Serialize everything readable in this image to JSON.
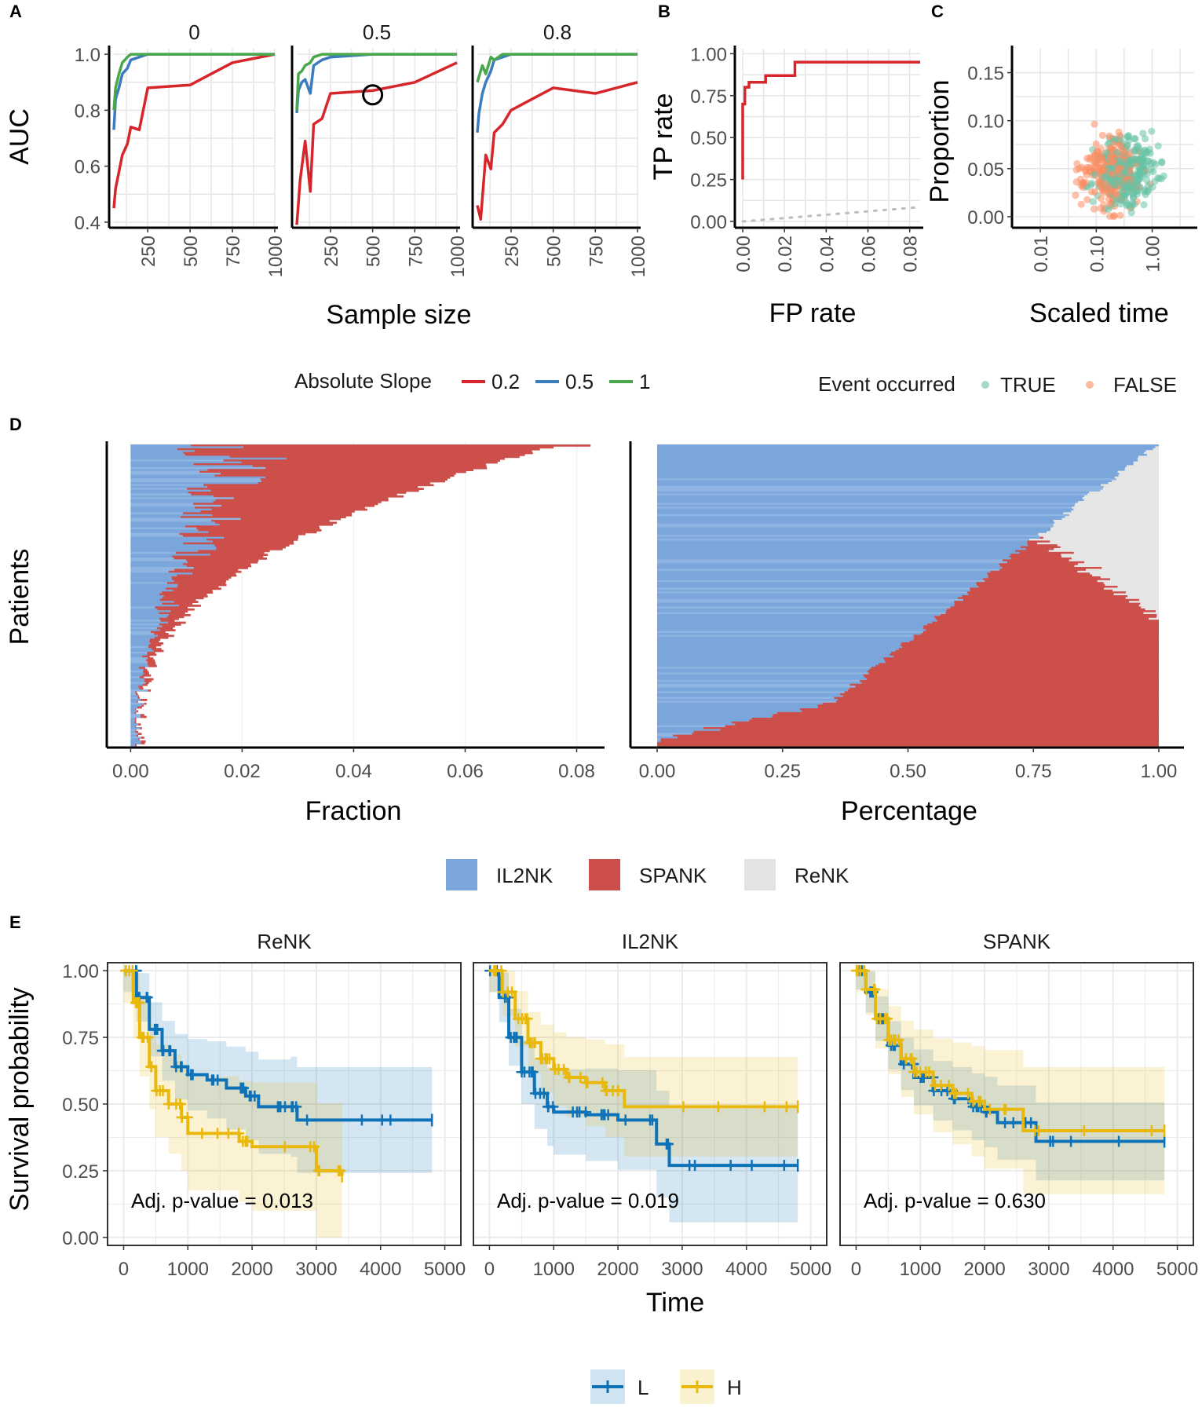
{
  "panel_labels": [
    "A",
    "B",
    "C",
    "D",
    "E"
  ],
  "colors": {
    "slope_02": "#d7262b",
    "slope_05": "#3b7cbf",
    "slope_1": "#4aa84a",
    "il2nk": "#7aa6dc",
    "spank": "#cd4f4a",
    "renk": "#e6e6e6",
    "true_pt": "#66c2a5",
    "false_pt": "#fc8d62",
    "L": "#0e72b8",
    "H": "#e8b90c",
    "grid": "#e6e6e6"
  },
  "chart_data": [
    {
      "id": "A",
      "type": "line",
      "facets": [
        "0",
        "0.5",
        "0.8"
      ],
      "ylabel": "AUC",
      "xlabel": "Sample size",
      "xlim": [
        50,
        1000
      ],
      "ylim": [
        0.38,
        1.02
      ],
      "xticks": [
        "250",
        "500",
        "750",
        "1000"
      ],
      "yticks": [
        "0.4",
        "0.6",
        "0.8",
        "1.0"
      ],
      "legend_title": "Absolute Slope",
      "legend": [
        "0.2",
        "0.5",
        "1"
      ],
      "highlight": {
        "facet": 1,
        "x": 500,
        "y": 0.855
      },
      "series": [
        [
          {
            "name": "0.2",
            "x": [
              50,
              60,
              80,
              100,
              130,
              150,
              200,
              250,
              500,
              750,
              1000
            ],
            "y": [
              0.45,
              0.52,
              0.58,
              0.64,
              0.68,
              0.74,
              0.73,
              0.88,
              0.89,
              0.97,
              1.0
            ]
          },
          {
            "name": "0.5",
            "x": [
              50,
              60,
              80,
              100,
              130,
              150,
              200,
              250,
              500,
              750,
              1000
            ],
            "y": [
              0.73,
              0.84,
              0.88,
              0.93,
              0.95,
              0.98,
              0.99,
              1.0,
              1.0,
              1.0,
              1.0
            ]
          },
          {
            "name": "1",
            "x": [
              50,
              60,
              80,
              100,
              130,
              150,
              200,
              250,
              500,
              750,
              1000
            ],
            "y": [
              0.8,
              0.88,
              0.93,
              0.97,
              0.99,
              1.0,
              1.0,
              1.0,
              1.0,
              1.0,
              1.0
            ]
          }
        ],
        [
          {
            "name": "0.2",
            "x": [
              50,
              70,
              100,
              130,
              150,
              200,
              250,
              500,
              750,
              1000
            ],
            "y": [
              0.39,
              0.55,
              0.69,
              0.51,
              0.75,
              0.77,
              0.86,
              0.87,
              0.9,
              0.97
            ]
          },
          {
            "name": "0.5",
            "x": [
              50,
              60,
              80,
              100,
              130,
              150,
              200,
              250,
              500,
              750,
              1000
            ],
            "y": [
              0.79,
              0.87,
              0.9,
              0.91,
              0.86,
              0.96,
              0.98,
              0.99,
              1.0,
              1.0,
              1.0
            ]
          },
          {
            "name": "1",
            "x": [
              50,
              60,
              80,
              100,
              130,
              150,
              200,
              250,
              500,
              750,
              1000
            ],
            "y": [
              0.8,
              0.93,
              0.94,
              0.96,
              0.97,
              0.99,
              1.0,
              1.0,
              1.0,
              1.0,
              1.0
            ]
          }
        ],
        [
          {
            "name": "0.2",
            "x": [
              50,
              70,
              100,
              130,
              150,
              200,
              250,
              500,
              750,
              1000
            ],
            "y": [
              0.46,
              0.41,
              0.64,
              0.59,
              0.72,
              0.75,
              0.8,
              0.88,
              0.86,
              0.9
            ]
          },
          {
            "name": "0.5",
            "x": [
              50,
              60,
              80,
              100,
              130,
              150,
              200,
              250,
              500,
              750,
              1000
            ],
            "y": [
              0.72,
              0.79,
              0.86,
              0.9,
              0.94,
              0.98,
              0.99,
              1.0,
              1.0,
              1.0,
              1.0
            ]
          },
          {
            "name": "1",
            "x": [
              50,
              60,
              80,
              100,
              130,
              150,
              200,
              250,
              500,
              750,
              1000
            ],
            "y": [
              0.9,
              0.92,
              0.96,
              0.93,
              0.99,
              0.98,
              1.0,
              1.0,
              1.0,
              1.0,
              1.0
            ]
          }
        ]
      ]
    },
    {
      "id": "B",
      "type": "line",
      "ylabel": "TP rate",
      "xlabel": "FP rate",
      "xlim": [
        0,
        0.085
      ],
      "ylim": [
        0,
        1.03
      ],
      "xticks": [
        "0.00",
        "0.02",
        "0.04",
        "0.06",
        "0.08"
      ],
      "yticks": [
        "0.00",
        "0.25",
        "0.50",
        "0.75",
        "1.00"
      ],
      "roc": {
        "x": [
          0,
          0,
          0.001,
          0.001,
          0.003,
          0.003,
          0.011,
          0.011,
          0.025,
          0.025,
          0.085
        ],
        "y": [
          0.25,
          0.7,
          0.7,
          0.8,
          0.8,
          0.83,
          0.83,
          0.87,
          0.87,
          0.95,
          0.95
        ]
      },
      "diagonal": {
        "x": [
          0,
          0.085
        ],
        "y": [
          0,
          0.085
        ]
      }
    },
    {
      "id": "C",
      "type": "scatter",
      "ylabel": "Proportion",
      "xlabel": "Scaled time",
      "xlim_log10": [
        -2.45,
        0.75
      ],
      "ylim": [
        -0.005,
        0.175
      ],
      "xticks": [
        "0.01",
        "0.10",
        "1.00"
      ],
      "yticks": [
        "0.00",
        "0.05",
        "0.10",
        "0.15"
      ],
      "legend_title": "Event occurred",
      "legend": [
        "TRUE",
        "FALSE"
      ],
      "n_points": 520
    },
    {
      "id": "D",
      "type": "bar",
      "ylabel": "Patients",
      "left": {
        "xlabel": "Fraction",
        "xlim": [
          -0.004,
          0.085
        ],
        "xticks": [
          "0.00",
          "0.02",
          "0.04",
          "0.06",
          "0.08"
        ]
      },
      "right": {
        "xlabel": "Percentage",
        "xlim": [
          -0.05,
          1.05
        ],
        "xticks": [
          "0.00",
          "0.25",
          "0.50",
          "0.75",
          "1.00"
        ]
      },
      "legend": [
        "IL2NK",
        "SPANK",
        "ReNK"
      ],
      "n_patients": 160
    },
    {
      "id": "E",
      "type": "line",
      "facets": [
        "ReNK",
        "IL2NK",
        "SPANK"
      ],
      "ylabel": "Survival probability",
      "xlabel": "Time",
      "xlim": [
        -250,
        5250
      ],
      "ylim": [
        -0.03,
        1.03
      ],
      "xticks": [
        "0",
        "1000",
        "2000",
        "3000",
        "4000",
        "5000"
      ],
      "yticks": [
        "0.00",
        "0.25",
        "0.50",
        "0.75",
        "1.00"
      ],
      "pvalues": [
        "Adj. p-value = 0.013",
        "Adj. p-value = 0.019",
        "Adj. p-value = 0.630"
      ],
      "legend": [
        "L",
        "H"
      ],
      "curves": [
        {
          "L": {
            "x": [
              0,
              200,
              400,
              600,
              800,
              1000,
              1300,
              1600,
              1900,
              2100,
              2600,
              2700,
              4800
            ],
            "y": [
              1.0,
              0.9,
              0.78,
              0.7,
              0.64,
              0.61,
              0.59,
              0.56,
              0.53,
              0.49,
              0.49,
              0.44,
              0.44
            ]
          },
          "H": {
            "x": [
              0,
              150,
              250,
              400,
              500,
              700,
              900,
              1000,
              1800,
              2000,
              3000,
              3400
            ],
            "y": [
              1.0,
              0.88,
              0.75,
              0.64,
              0.55,
              0.5,
              0.45,
              0.39,
              0.36,
              0.34,
              0.25,
              0.23
            ]
          }
        },
        {
          "L": {
            "x": [
              0,
              150,
              300,
              500,
              700,
              900,
              1000,
              1500,
              2000,
              2600,
              2800,
              4800
            ],
            "y": [
              1.0,
              0.9,
              0.75,
              0.62,
              0.54,
              0.49,
              0.47,
              0.46,
              0.44,
              0.35,
              0.27,
              0.27
            ]
          },
          "H": {
            "x": [
              0,
              200,
              400,
              600,
              800,
              1000,
              1200,
              1500,
              1800,
              2100,
              4800
            ],
            "y": [
              1.0,
              0.92,
              0.82,
              0.73,
              0.67,
              0.63,
              0.6,
              0.58,
              0.55,
              0.49,
              0.49
            ]
          }
        },
        {
          "L": {
            "x": [
              0,
              150,
              300,
              500,
              700,
              900,
              1200,
              1500,
              1800,
              2000,
              2200,
              2800,
              4800
            ],
            "y": [
              1.0,
              0.92,
              0.82,
              0.72,
              0.65,
              0.6,
              0.55,
              0.52,
              0.49,
              0.47,
              0.43,
              0.36,
              0.36
            ]
          },
          "H": {
            "x": [
              0,
              150,
              300,
              500,
              700,
              900,
              1200,
              1500,
              1800,
              2000,
              2600,
              4800
            ],
            "y": [
              1.0,
              0.93,
              0.82,
              0.74,
              0.67,
              0.62,
              0.57,
              0.54,
              0.51,
              0.48,
              0.4,
              0.4
            ]
          }
        }
      ]
    }
  ]
}
